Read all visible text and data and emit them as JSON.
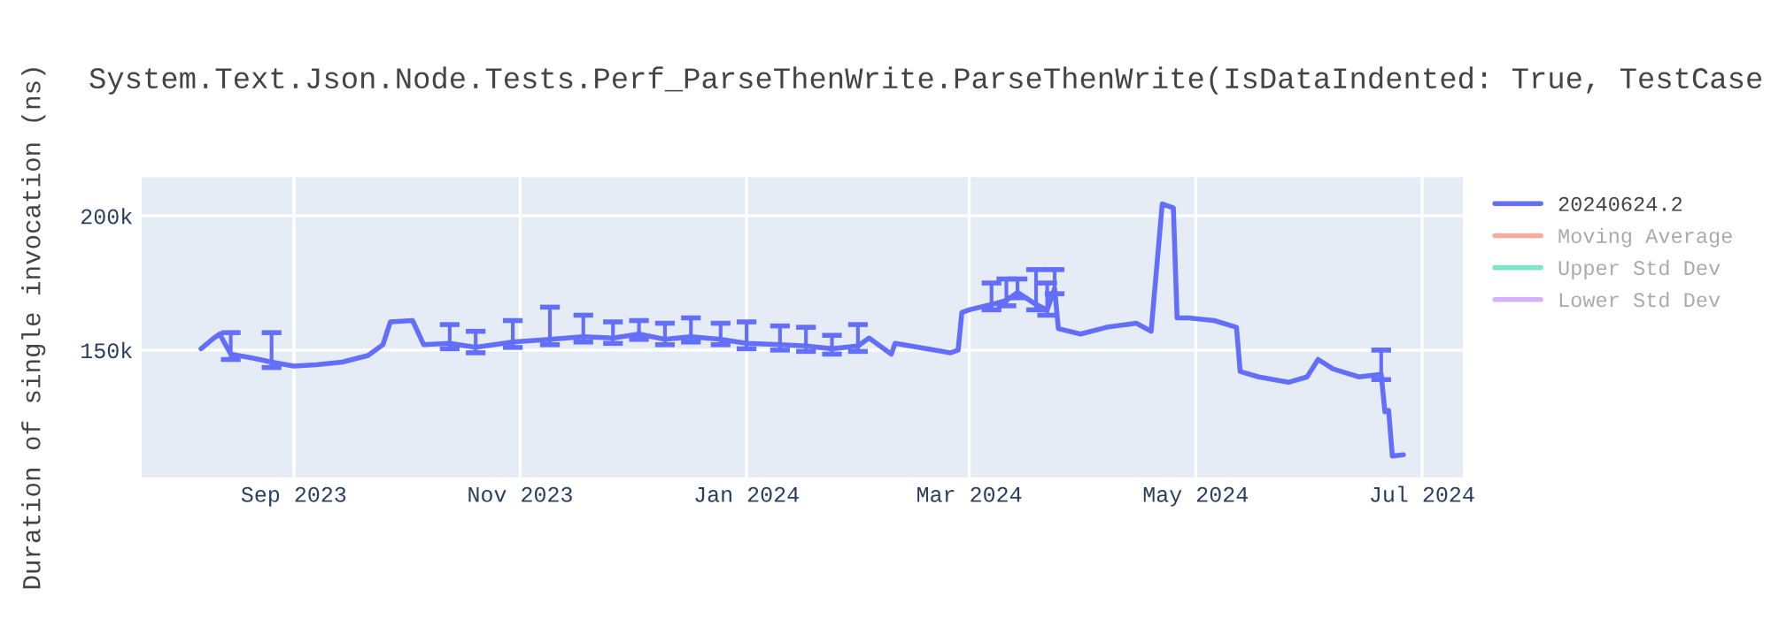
{
  "chart_data": {
    "type": "line",
    "title": "System.Text.Json.Node.Tests.Perf_ParseThenWrite.ParseThenWrite(IsDataIndented: True, TestCase",
    "ylabel": "Duration of single invocation (ns)",
    "x": [
      "2023-08-07",
      "2023-08-10",
      "2023-08-12",
      "2023-08-15",
      "2023-08-21",
      "2023-08-26",
      "2023-09-01",
      "2023-09-07",
      "2023-09-14",
      "2023-09-21",
      "2023-09-25",
      "2023-09-27",
      "2023-10-03",
      "2023-10-06",
      "2023-10-13",
      "2023-10-20",
      "2023-10-30",
      "2023-11-09",
      "2023-11-18",
      "2023-11-26",
      "2023-12-03",
      "2023-12-10",
      "2023-12-17",
      "2023-12-25",
      "2024-01-01",
      "2024-01-10",
      "2024-01-17",
      "2024-01-24",
      "2024-01-31",
      "2024-02-03",
      "2024-02-09",
      "2024-02-10",
      "2024-02-25",
      "2024-02-27",
      "2024-02-28",
      "2024-03-01",
      "2024-03-07",
      "2024-03-11",
      "2024-03-14",
      "2024-03-19",
      "2024-03-22",
      "2024-03-24",
      "2024-03-25",
      "2024-03-31",
      "2024-04-07",
      "2024-04-15",
      "2024-04-19",
      "2024-04-22",
      "2024-04-25",
      "2024-04-26",
      "2024-04-29",
      "2024-05-06",
      "2024-05-12",
      "2024-05-13",
      "2024-05-18",
      "2024-05-26",
      "2024-05-31",
      "2024-06-03",
      "2024-06-07",
      "2024-06-14",
      "2024-06-20",
      "2024-06-21",
      "2024-06-22",
      "2024-06-23",
      "2024-06-26"
    ],
    "series": [
      {
        "name": "20240624.2",
        "color": "#636efa",
        "values": [
          150500,
          154000,
          156000,
          148500,
          147000,
          145500,
          144000,
          144500,
          145500,
          148000,
          152000,
          160500,
          161000,
          152000,
          152500,
          151000,
          153000,
          154000,
          155000,
          154500,
          156000,
          154000,
          155000,
          154000,
          152500,
          152000,
          151500,
          150500,
          151500,
          154500,
          148500,
          152500,
          149000,
          150000,
          164000,
          165000,
          167000,
          168500,
          171500,
          167000,
          165000,
          173000,
          158000,
          156000,
          158500,
          160000,
          157000,
          204500,
          203000,
          162000,
          162000,
          161000,
          158500,
          142000,
          140000,
          138000,
          140000,
          146500,
          143000,
          140000,
          141000,
          127000,
          127500,
          110500,
          111000
        ],
        "errors": [
          null,
          null,
          null,
          [
            146500,
            156500
          ],
          null,
          [
            143500,
            156500
          ],
          null,
          null,
          null,
          null,
          null,
          null,
          null,
          null,
          [
            150500,
            159500
          ],
          [
            149000,
            157000
          ],
          [
            151000,
            161000
          ],
          [
            152000,
            166000
          ],
          [
            153000,
            163000
          ],
          [
            152500,
            160500
          ],
          [
            154000,
            161000
          ],
          [
            152000,
            160000
          ],
          [
            153000,
            162000
          ],
          [
            152000,
            160000
          ],
          [
            150500,
            160500
          ],
          [
            150000,
            159000
          ],
          [
            149500,
            158500
          ],
          [
            148500,
            155500
          ],
          [
            149500,
            159500
          ],
          null,
          null,
          null,
          null,
          null,
          null,
          null,
          [
            165000,
            175000
          ],
          [
            166500,
            176500
          ],
          [
            169500,
            176500
          ],
          [
            165000,
            180000
          ],
          [
            163000,
            175000
          ],
          [
            171000,
            180000
          ],
          null,
          null,
          null,
          null,
          null,
          null,
          null,
          null,
          null,
          null,
          null,
          null,
          null,
          null,
          null,
          null,
          null,
          null,
          [
            139000,
            150000
          ],
          null,
          null,
          null,
          null
        ]
      },
      {
        "name": "Moving Average",
        "color": "#ef553b",
        "values": [
          null,
          null,
          null,
          null,
          null,
          null,
          null,
          null,
          null,
          null,
          null,
          null,
          null,
          null,
          null,
          null,
          null,
          null,
          null,
          null,
          null,
          null,
          null,
          null,
          null,
          null,
          null,
          null,
          null,
          null,
          null,
          null,
          null,
          null,
          null,
          null,
          null,
          null,
          null,
          null,
          null,
          null,
          null,
          null,
          null,
          null,
          null,
          null,
          null,
          null,
          null,
          null,
          null,
          null,
          null,
          null,
          null,
          null,
          null,
          null,
          null,
          null,
          null,
          null,
          null
        ]
      },
      {
        "name": "Upper Std Dev",
        "color": "#00cc96",
        "values": [
          null,
          null,
          null,
          null,
          null,
          null,
          null,
          null,
          null,
          null,
          null,
          null,
          null,
          null,
          null,
          null,
          null,
          null,
          null,
          null,
          null,
          null,
          null,
          null,
          null,
          null,
          null,
          null,
          null,
          null,
          null,
          null,
          null,
          null,
          null,
          null,
          null,
          null,
          null,
          null,
          null,
          null,
          null,
          null,
          null,
          null,
          null,
          null,
          null,
          null,
          null,
          null,
          null,
          null,
          null,
          null,
          null,
          null,
          null,
          null,
          null,
          null,
          null,
          null,
          null
        ]
      },
      {
        "name": "Lower Std Dev",
        "color": "#ab63fa",
        "values": [
          null,
          null,
          null,
          null,
          null,
          null,
          null,
          null,
          null,
          null,
          null,
          null,
          null,
          null,
          null,
          null,
          null,
          null,
          null,
          null,
          null,
          null,
          null,
          null,
          null,
          null,
          null,
          null,
          null,
          null,
          null,
          null,
          null,
          null,
          null,
          null,
          null,
          null,
          null,
          null,
          null,
          null,
          null,
          null,
          null,
          null,
          null,
          null,
          null,
          null,
          null,
          null,
          null,
          null,
          null,
          null,
          null,
          null,
          null,
          null,
          null,
          null,
          null,
          null,
          null
        ]
      }
    ],
    "xlim": [
      "2023-07-22",
      "2024-07-12"
    ],
    "xticks": [
      {
        "value": "2023-09-01",
        "label": "Sep 2023"
      },
      {
        "value": "2023-11-01",
        "label": "Nov 2023"
      },
      {
        "value": "2024-01-01",
        "label": "Jan 2024"
      },
      {
        "value": "2024-03-01",
        "label": "Mar 2024"
      },
      {
        "value": "2024-05-01",
        "label": "May 2024"
      },
      {
        "value": "2024-07-01",
        "label": "Jul 2024"
      }
    ],
    "ylim": [
      102600,
      214500
    ],
    "yticks": [
      {
        "value": 150000,
        "label": "150k"
      },
      {
        "value": 200000,
        "label": "200k"
      }
    ],
    "grid": true,
    "legend": "right",
    "marker": "none",
    "line_style": "solid"
  }
}
